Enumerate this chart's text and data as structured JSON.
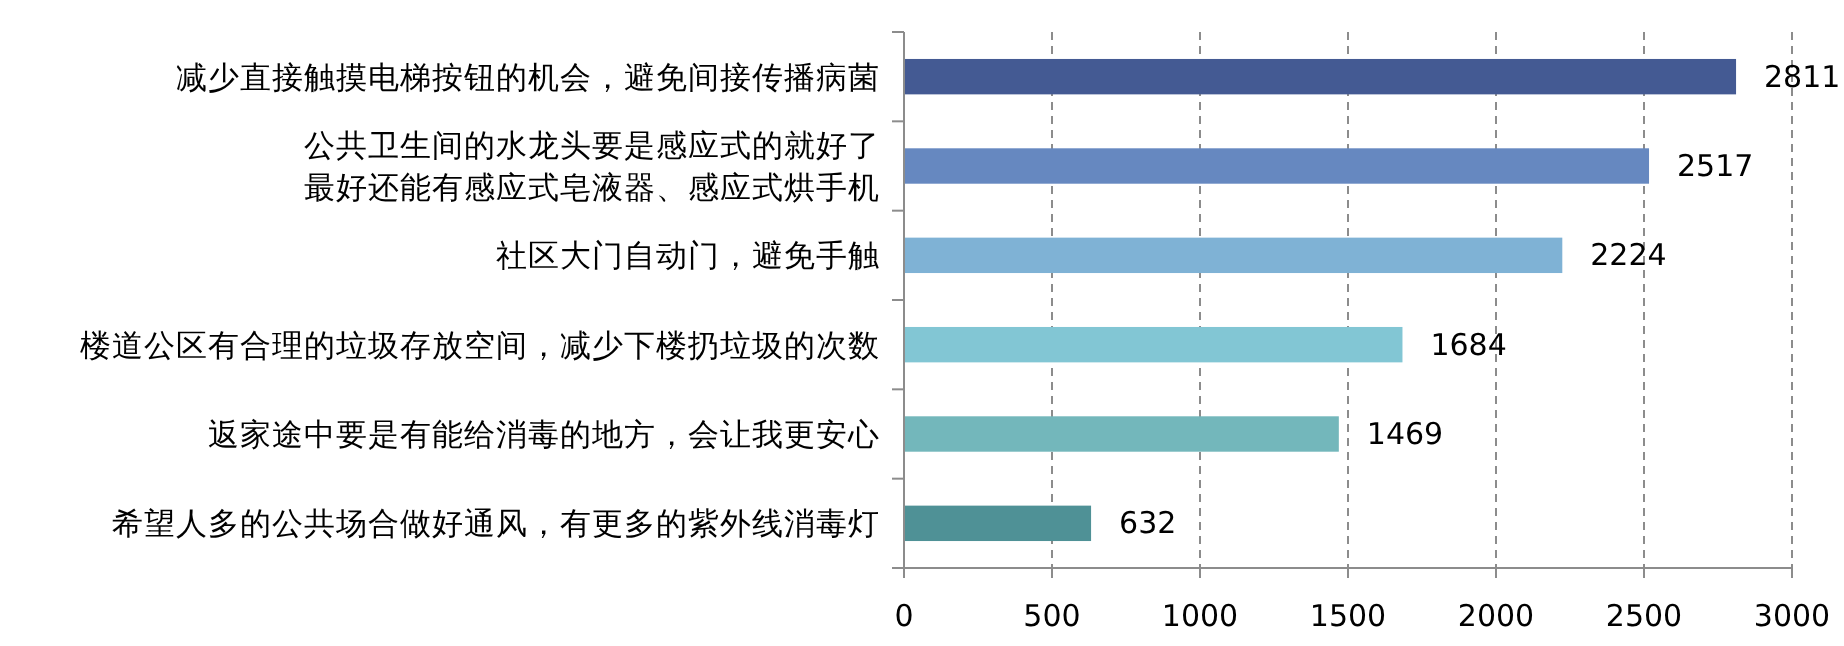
{
  "chart_data": {
    "type": "bar",
    "orientation": "horizontal",
    "categories": [
      "减少直接触摸电梯按钮的机会，避免间接传播病菌",
      "公共卫生间的水龙头要是感应式的就好了最好还能有感应式皂液器、感应式烘手机",
      "社区大门自动门，避免手触",
      "楼道公区有合理的垃圾存放空间，减少下楼扔垃圾的次数",
      "返家途中要是有能给消毒的地方，会让我更安心",
      "希望人多的公共场合做好通风，有更多的紫外线消毒灯"
    ],
    "values": [
      2811,
      2517,
      2224,
      1684,
      1469,
      632
    ],
    "colors": [
      "#445a93",
      "#6688c0",
      "#7fb2d5",
      "#82c6d4",
      "#73b7bb",
      "#4f9196"
    ],
    "xlim": [
      0,
      3000
    ],
    "xticks": [
      0,
      500,
      1000,
      1500,
      2000,
      2500,
      3000
    ],
    "grid": "x",
    "data_labels": true
  }
}
